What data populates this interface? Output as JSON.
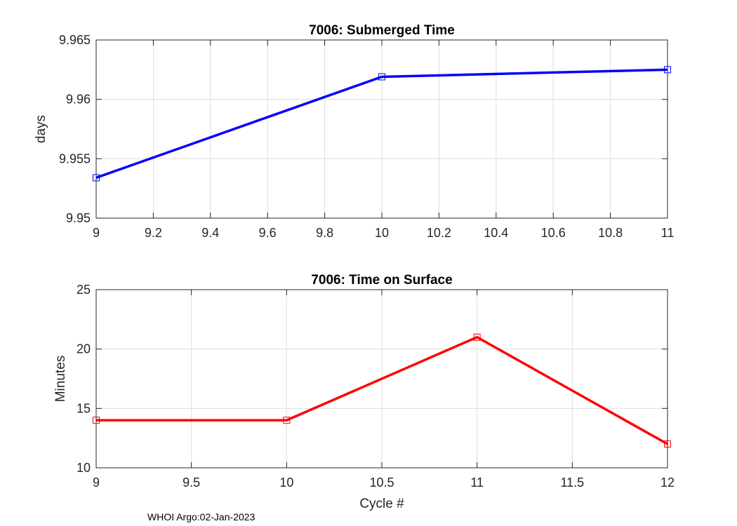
{
  "footer": "WHOI Argo:02-Jan-2023",
  "chart_data": [
    {
      "type": "line",
      "title": "7006: Submerged Time",
      "xlabel": "",
      "ylabel": "days",
      "xlim": [
        9,
        11
      ],
      "ylim": [
        9.95,
        9.965
      ],
      "xticks": [
        "9",
        "9.2",
        "9.4",
        "9.6",
        "9.8",
        "10",
        "10.2",
        "10.4",
        "10.6",
        "10.8",
        "11"
      ],
      "xtick_values": [
        9,
        9.2,
        9.4,
        9.6,
        9.8,
        10,
        10.2,
        10.4,
        10.6,
        10.8,
        11
      ],
      "yticks": [
        "9.95",
        "9.955",
        "9.96",
        "9.965"
      ],
      "ytick_values": [
        9.95,
        9.955,
        9.96,
        9.965
      ],
      "grid": true,
      "series": [
        {
          "name": "Submerged Time",
          "color": "#0000ff",
          "marker": "square",
          "x": [
            9,
            10,
            11
          ],
          "y": [
            9.9534,
            9.9619,
            9.9625
          ]
        }
      ]
    },
    {
      "type": "line",
      "title": "7006: Time on Surface",
      "xlabel": "Cycle #",
      "ylabel": "Minutes",
      "xlim": [
        9,
        12
      ],
      "ylim": [
        10,
        25
      ],
      "xticks": [
        "9",
        "9.5",
        "10",
        "10.5",
        "11",
        "11.5",
        "12"
      ],
      "xtick_values": [
        9,
        9.5,
        10,
        10.5,
        11,
        11.5,
        12
      ],
      "yticks": [
        "10",
        "15",
        "20",
        "25"
      ],
      "ytick_values": [
        10,
        15,
        20,
        25
      ],
      "grid": true,
      "series": [
        {
          "name": "Time on Surface",
          "color": "#ff0000",
          "marker": "square",
          "x": [
            9,
            10,
            11,
            12
          ],
          "y": [
            14,
            14,
            21,
            12
          ]
        }
      ]
    }
  ]
}
